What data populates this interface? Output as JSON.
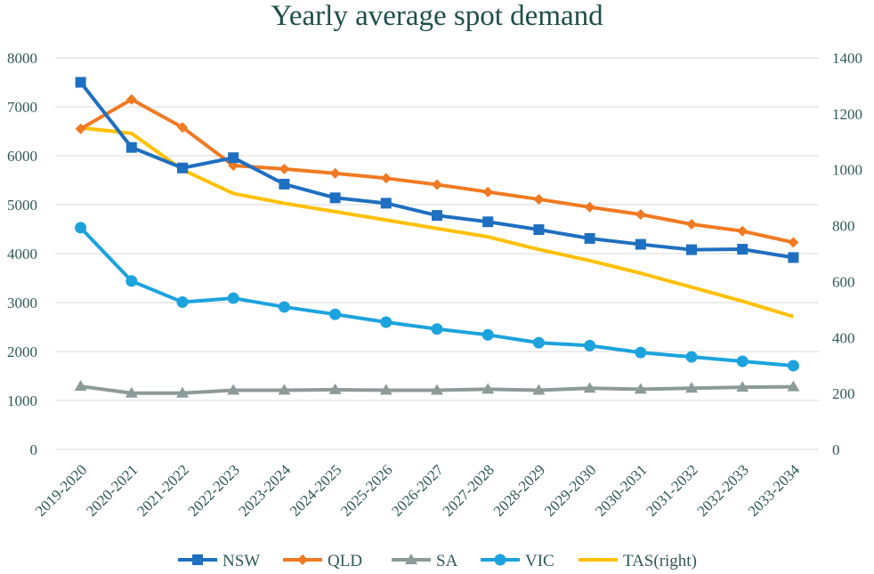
{
  "chart_data": {
    "type": "line",
    "title": "Yearly average spot demand",
    "categories": [
      "2019-2020",
      "2020-2021",
      "2021-2022",
      "2022-2023",
      "2023-2024",
      "2024-2025",
      "2025-2026",
      "2026-2027",
      "2027-2028",
      "2028-2029",
      "2029-2030",
      "2030-2031",
      "2031-2032",
      "2032-2033",
      "2033-2034"
    ],
    "y_left": {
      "min": 0,
      "max": 8000,
      "step": 1000,
      "ticks": [
        "0",
        "1000",
        "2000",
        "3000",
        "4000",
        "5000",
        "6000",
        "7000",
        "8000"
      ]
    },
    "y_right": {
      "min": 0,
      "max": 1400,
      "step": 200,
      "ticks": [
        "0",
        "200",
        "400",
        "600",
        "800",
        "1000",
        "1200",
        "1400"
      ]
    },
    "grid": true,
    "legend_position": "bottom",
    "series": [
      {
        "name": "NSW",
        "axis": "left",
        "color": "#1f6fc0",
        "marker": "square",
        "values": [
          7500,
          6170,
          5750,
          5960,
          5420,
          5140,
          5030,
          4780,
          4650,
          4490,
          4310,
          4190,
          4080,
          4090,
          3920
        ]
      },
      {
        "name": "QLD",
        "axis": "left",
        "color": "#f07a22",
        "marker": "diamond",
        "values": [
          6550,
          7150,
          6580,
          5800,
          5730,
          5640,
          5540,
          5410,
          5260,
          5110,
          4950,
          4800,
          4600,
          4460,
          4230
        ]
      },
      {
        "name": "SA",
        "axis": "left",
        "color": "#8c9a98",
        "marker": "triangle",
        "values": [
          1290,
          1150,
          1150,
          1210,
          1210,
          1220,
          1210,
          1210,
          1230,
          1210,
          1250,
          1230,
          1250,
          1270,
          1280
        ]
      },
      {
        "name": "VIC",
        "axis": "left",
        "color": "#1ca3dd",
        "marker": "circle",
        "values": [
          4530,
          3440,
          3010,
          3090,
          2910,
          2760,
          2600,
          2460,
          2340,
          2180,
          2120,
          1980,
          1890,
          1800,
          1710
        ]
      },
      {
        "name": "TAS(right)",
        "axis": "right",
        "color": "#ffc000",
        "marker": "none",
        "values": [
          1150,
          1130,
          1000,
          915,
          880,
          850,
          820,
          790,
          760,
          715,
          675,
          630,
          580,
          530,
          475
        ]
      }
    ]
  }
}
